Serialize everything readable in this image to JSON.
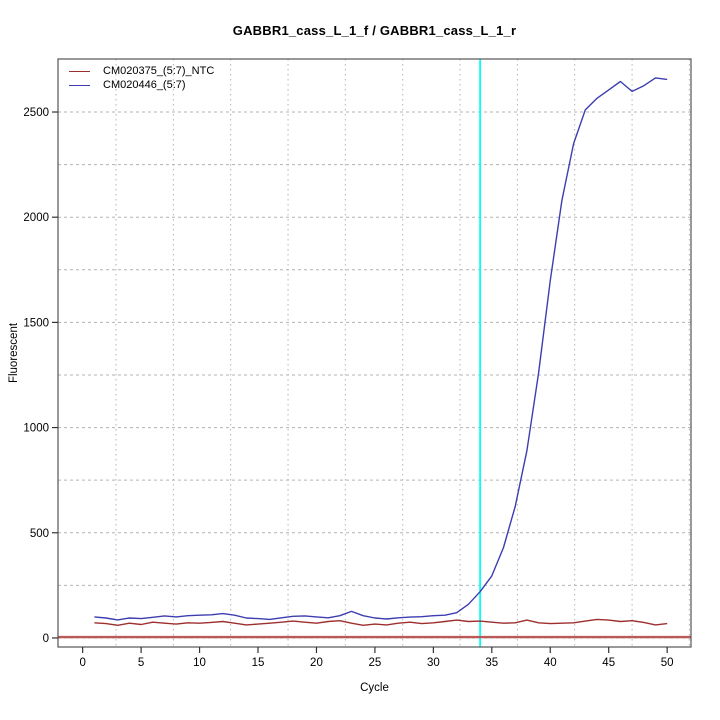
{
  "chart_data": {
    "type": "line",
    "title": "GABBR1_cass_L_1_f / GABBR1_cass_L_1_r",
    "xlabel": "Cycle",
    "ylabel": "Fluorescent",
    "xlim": [
      -2.11,
      52.04
    ],
    "ylim": [
      -43,
      2752
    ],
    "x_ticks": [
      0,
      5,
      10,
      15,
      20,
      25,
      30,
      35,
      40,
      45,
      50
    ],
    "y_ticks": [
      0,
      500,
      1000,
      1500,
      2000,
      2500
    ],
    "grid": {
      "color": "#b3b3b3",
      "x_values": [
        2.85,
        7.76,
        12.66,
        17.57,
        22.47,
        27.38,
        32.28,
        37.19,
        42.09,
        47.0,
        51.9
      ],
      "y_values": [
        0,
        250,
        500,
        750,
        1000,
        1250,
        1500,
        1750,
        2000,
        2250,
        2500
      ]
    },
    "threshold_line": {
      "value": 4,
      "color": "#bc5858"
    },
    "ct_line": {
      "cycle": 34,
      "color": "#00ffff"
    },
    "legend_position": "top-left",
    "x": [
      1,
      2,
      3,
      4,
      5,
      6,
      7,
      8,
      9,
      10,
      11,
      12,
      13,
      14,
      15,
      16,
      17,
      18,
      19,
      20,
      21,
      22,
      23,
      24,
      25,
      26,
      27,
      28,
      29,
      30,
      31,
      32,
      33,
      34,
      35,
      36,
      37,
      38,
      39,
      40,
      41,
      42,
      43,
      44,
      45,
      46,
      47,
      48,
      49,
      50
    ],
    "series": [
      {
        "name": "CM020375_(5:7)_NTC",
        "color": "#9e2f2f",
        "values": [
          72,
          68,
          60,
          70,
          64,
          75,
          70,
          66,
          72,
          70,
          74,
          78,
          70,
          62,
          66,
          70,
          75,
          80,
          75,
          70,
          78,
          82,
          70,
          60,
          66,
          62,
          70,
          75,
          68,
          72,
          78,
          85,
          78,
          80,
          75,
          70,
          72,
          85,
          72,
          68,
          70,
          72,
          80,
          88,
          85,
          78,
          82,
          74,
          62,
          68
        ]
      },
      {
        "name": "CM020446_(5:7)",
        "color": "#3d3db0",
        "values": [
          100,
          95,
          86,
          95,
          92,
          98,
          105,
          100,
          106,
          108,
          110,
          116,
          108,
          95,
          92,
          88,
          96,
          103,
          105,
          100,
          96,
          106,
          126,
          106,
          95,
          90,
          96,
          99,
          101,
          106,
          108,
          120,
          160,
          220,
          295,
          430,
          625,
          890,
          1260,
          1700,
          2080,
          2350,
          2510,
          2565,
          2605,
          2645,
          2598,
          2625,
          2662,
          2655
        ]
      }
    ]
  }
}
